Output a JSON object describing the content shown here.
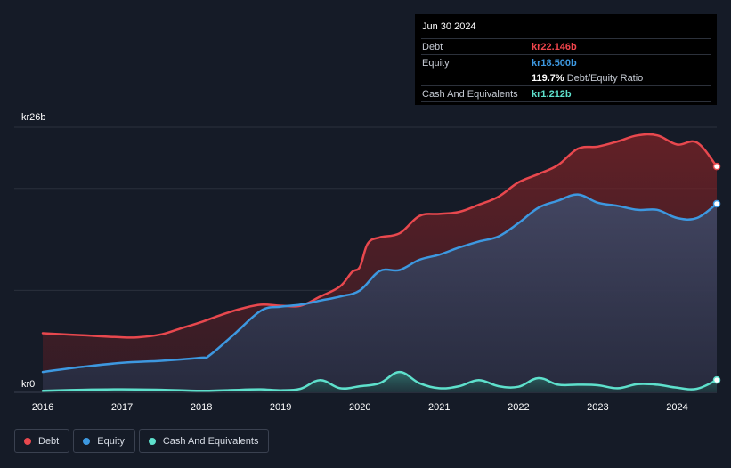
{
  "tooltip": {
    "date": "Jun 30 2024",
    "debt_label": "Debt",
    "debt_value": "kr22.146b",
    "equity_label": "Equity",
    "equity_value": "kr18.500b",
    "ratio_value": "119.7%",
    "ratio_label": "Debt/Equity Ratio",
    "cash_label": "Cash And Equivalents",
    "cash_value": "kr1.212b"
  },
  "colors": {
    "debt": "#e8484e",
    "equity": "#3d98e0",
    "cash": "#5ee0cc",
    "background": "#151b27"
  },
  "legend": [
    {
      "key": "debt",
      "label": "Debt"
    },
    {
      "key": "equity",
      "label": "Equity"
    },
    {
      "key": "cash",
      "label": "Cash And Equivalents"
    }
  ],
  "chart_data": {
    "type": "area",
    "title": "",
    "xlabel": "",
    "ylabel": "",
    "ylim": [
      0,
      26
    ],
    "xlim": [
      2016.0,
      2024.5
    ],
    "y_unit": "kr billions",
    "y_ticks": [
      {
        "value": 26,
        "label": "kr26b"
      },
      {
        "value": 0,
        "label": "kr0"
      }
    ],
    "x_ticks": [
      {
        "value": 2016,
        "label": "2016"
      },
      {
        "value": 2017,
        "label": "2017"
      },
      {
        "value": 2018,
        "label": "2018"
      },
      {
        "value": 2019,
        "label": "2019"
      },
      {
        "value": 2020,
        "label": "2020"
      },
      {
        "value": 2021,
        "label": "2021"
      },
      {
        "value": 2022,
        "label": "2022"
      },
      {
        "value": 2023,
        "label": "2023"
      },
      {
        "value": 2024,
        "label": "2024"
      }
    ],
    "gridlines": [
      0,
      10,
      20,
      26
    ],
    "series": [
      {
        "name": "Debt",
        "key": "debt",
        "points": [
          [
            2016.0,
            5.8
          ],
          [
            2016.5,
            5.6
          ],
          [
            2017.0,
            5.4
          ],
          [
            2017.2,
            5.4
          ],
          [
            2017.5,
            5.7
          ],
          [
            2017.75,
            6.3
          ],
          [
            2018.0,
            6.9
          ],
          [
            2018.25,
            7.6
          ],
          [
            2018.5,
            8.2
          ],
          [
            2018.75,
            8.6
          ],
          [
            2019.0,
            8.5
          ],
          [
            2019.25,
            8.5
          ],
          [
            2019.5,
            9.4
          ],
          [
            2019.75,
            10.4
          ],
          [
            2019.9,
            11.8
          ],
          [
            2020.0,
            12.3
          ],
          [
            2020.1,
            14.6
          ],
          [
            2020.25,
            15.2
          ],
          [
            2020.5,
            15.6
          ],
          [
            2020.75,
            17.3
          ],
          [
            2021.0,
            17.5
          ],
          [
            2021.25,
            17.7
          ],
          [
            2021.5,
            18.4
          ],
          [
            2021.75,
            19.2
          ],
          [
            2022.0,
            20.6
          ],
          [
            2022.25,
            21.4
          ],
          [
            2022.5,
            22.3
          ],
          [
            2022.75,
            23.9
          ],
          [
            2023.0,
            24.1
          ],
          [
            2023.25,
            24.6
          ],
          [
            2023.5,
            25.2
          ],
          [
            2023.75,
            25.2
          ],
          [
            2024.0,
            24.3
          ],
          [
            2024.25,
            24.5
          ],
          [
            2024.5,
            22.15
          ]
        ]
      },
      {
        "name": "Equity",
        "key": "equity",
        "points": [
          [
            2016.0,
            2.0
          ],
          [
            2016.5,
            2.5
          ],
          [
            2017.0,
            2.9
          ],
          [
            2017.5,
            3.1
          ],
          [
            2018.0,
            3.4
          ],
          [
            2018.1,
            3.6
          ],
          [
            2018.4,
            5.6
          ],
          [
            2018.75,
            8.0
          ],
          [
            2019.0,
            8.4
          ],
          [
            2019.25,
            8.6
          ],
          [
            2019.5,
            9.0
          ],
          [
            2019.75,
            9.4
          ],
          [
            2020.0,
            10.0
          ],
          [
            2020.25,
            11.9
          ],
          [
            2020.5,
            12.0
          ],
          [
            2020.75,
            13.0
          ],
          [
            2021.0,
            13.5
          ],
          [
            2021.25,
            14.2
          ],
          [
            2021.5,
            14.8
          ],
          [
            2021.75,
            15.3
          ],
          [
            2022.0,
            16.6
          ],
          [
            2022.25,
            18.1
          ],
          [
            2022.5,
            18.8
          ],
          [
            2022.75,
            19.4
          ],
          [
            2023.0,
            18.6
          ],
          [
            2023.25,
            18.3
          ],
          [
            2023.5,
            17.9
          ],
          [
            2023.75,
            17.9
          ],
          [
            2024.0,
            17.1
          ],
          [
            2024.25,
            17.1
          ],
          [
            2024.5,
            18.5
          ]
        ]
      },
      {
        "name": "Cash And Equivalents",
        "key": "cash",
        "points": [
          [
            2016.0,
            0.15
          ],
          [
            2016.5,
            0.25
          ],
          [
            2017.0,
            0.3
          ],
          [
            2017.5,
            0.25
          ],
          [
            2018.0,
            0.15
          ],
          [
            2018.5,
            0.25
          ],
          [
            2018.75,
            0.3
          ],
          [
            2019.0,
            0.2
          ],
          [
            2019.25,
            0.35
          ],
          [
            2019.5,
            1.2
          ],
          [
            2019.75,
            0.4
          ],
          [
            2020.0,
            0.6
          ],
          [
            2020.25,
            0.9
          ],
          [
            2020.5,
            2.0
          ],
          [
            2020.75,
            0.9
          ],
          [
            2021.0,
            0.4
          ],
          [
            2021.25,
            0.6
          ],
          [
            2021.5,
            1.2
          ],
          [
            2021.75,
            0.6
          ],
          [
            2022.0,
            0.55
          ],
          [
            2022.25,
            1.4
          ],
          [
            2022.5,
            0.75
          ],
          [
            2022.75,
            0.75
          ],
          [
            2023.0,
            0.7
          ],
          [
            2023.25,
            0.4
          ],
          [
            2023.5,
            0.8
          ],
          [
            2023.75,
            0.75
          ],
          [
            2024.0,
            0.45
          ],
          [
            2024.25,
            0.35
          ],
          [
            2024.5,
            1.21
          ]
        ]
      }
    ]
  }
}
